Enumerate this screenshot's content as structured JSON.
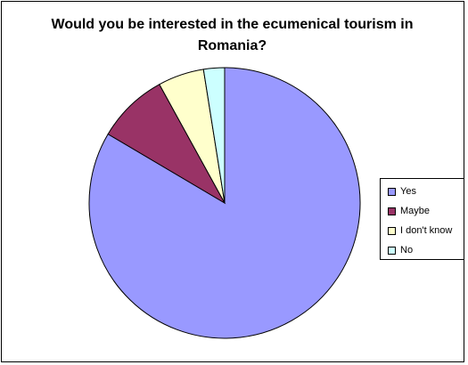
{
  "chart_data": {
    "type": "pie",
    "title": "Would you be interested in the ecumenical tourism in Romania?",
    "categories": [
      "Yes",
      "Maybe",
      "I don't know",
      "No"
    ],
    "values": [
      83.5,
      8.5,
      5.5,
      2.5
    ],
    "colors": [
      "#9999ff",
      "#993366",
      "#ffffcc",
      "#ccffff"
    ],
    "legend_position": "right"
  }
}
